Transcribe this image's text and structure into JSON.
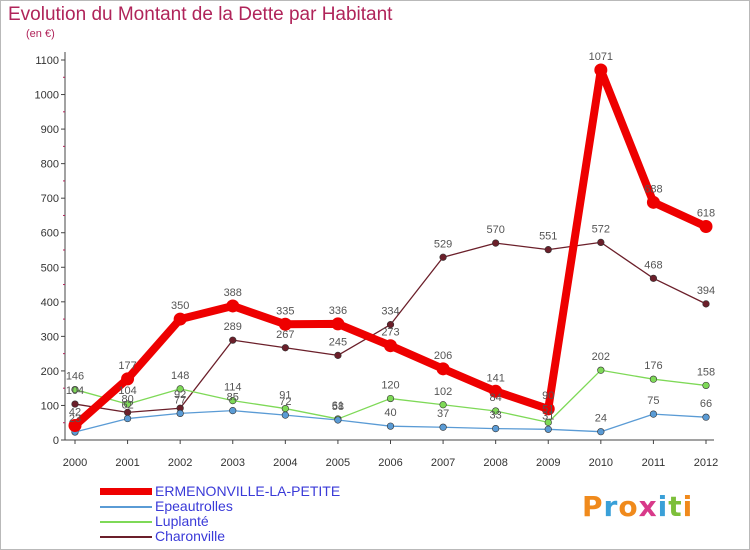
{
  "header": {
    "title": "Evolution du Montant de la Dette par Habitant",
    "subtitle": "(en €)"
  },
  "brand": {
    "letters": [
      "P",
      "r",
      "o",
      "x",
      "i",
      "t",
      "i"
    ],
    "colors": [
      "#f08a1c",
      "#3aa0d8",
      "#f08a1c",
      "#d83a8a",
      "#3aa0d8",
      "#7dbf3a",
      "#f08a1c"
    ]
  },
  "chart_data": {
    "type": "line",
    "title": "Evolution du Montant de la Dette par Habitant",
    "subtitle": "(en €)",
    "xlabel": "",
    "ylabel": "",
    "x": [
      "2000",
      "2001",
      "2002",
      "2003",
      "2004",
      "2005",
      "2006",
      "2007",
      "2008",
      "2009",
      "2010",
      "2011",
      "2012"
    ],
    "y_ticks": [
      0,
      100,
      200,
      300,
      400,
      500,
      600,
      700,
      800,
      900,
      1000,
      1100
    ],
    "ylim": [
      0,
      1100
    ],
    "grid": false,
    "legend_position": "bottom-left",
    "series": [
      {
        "name": "ERMENONVILLE-LA-PETITE",
        "color": "#ee0000",
        "values": [
          42,
          177,
          350,
          388,
          335,
          336,
          273,
          206,
          141,
          90,
          1071,
          688,
          618
        ]
      },
      {
        "name": "Epeautrolles",
        "color": "#5a9bd5",
        "values": [
          23,
          62,
          77,
          85,
          72,
          58,
          40,
          37,
          33,
          31,
          24,
          75,
          66
        ]
      },
      {
        "name": "Luplanté",
        "color": "#7ed957",
        "values": [
          146,
          104,
          148,
          114,
          91,
          61,
          120,
          102,
          84,
          51,
          202,
          176,
          158
        ]
      },
      {
        "name": "Charonville",
        "color": "#6b1f2a",
        "values": [
          104,
          80,
          92,
          289,
          267,
          245,
          334,
          529,
          570,
          551,
          572,
          468,
          394
        ]
      }
    ]
  }
}
